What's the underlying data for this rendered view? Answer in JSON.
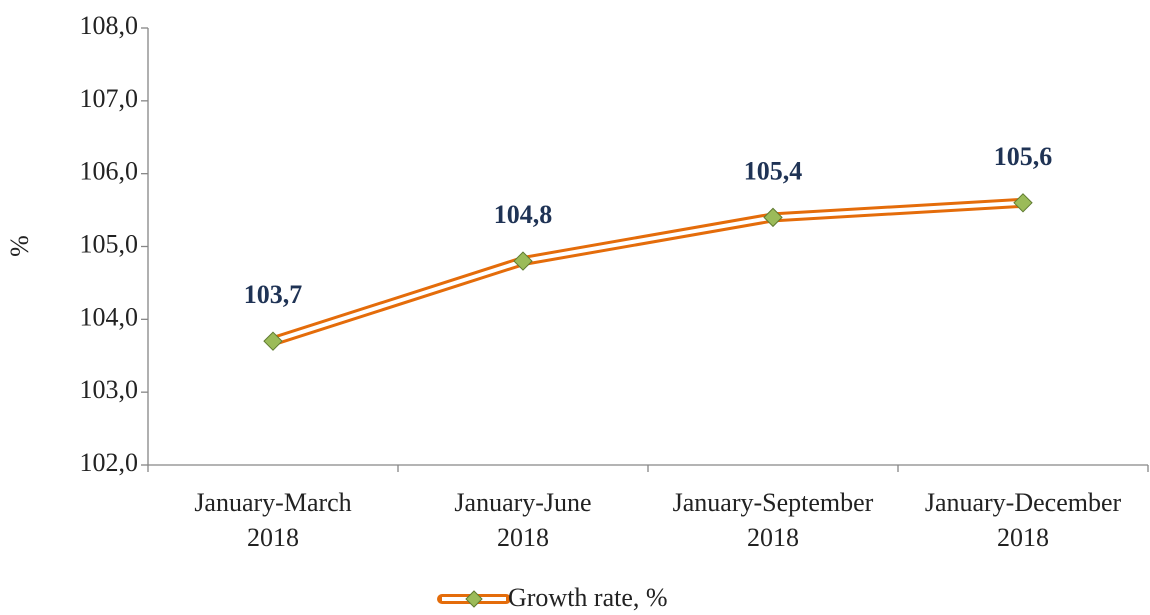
{
  "chart_data": {
    "type": "line",
    "categories": [
      "January-March 2018",
      "January-June 2018",
      "January-September 2018",
      "January-December 2018"
    ],
    "series": [
      {
        "name": "Growth rate, %",
        "color": "#e46c0a",
        "marker_color": "#9bbb59",
        "values": [
          103.7,
          104.8,
          105.4,
          105.6
        ],
        "value_labels": [
          "103,7",
          "104,8",
          "105,4",
          "105,6"
        ]
      }
    ],
    "ylabel": "%",
    "ylim": [
      102,
      108
    ],
    "yticks": [
      {
        "value": 102,
        "label": "102,0"
      },
      {
        "value": 103,
        "label": "103,0"
      },
      {
        "value": 104,
        "label": "104,0"
      },
      {
        "value": 105,
        "label": "105,0"
      },
      {
        "value": 106,
        "label": "106,0"
      },
      {
        "value": 107,
        "label": "107,0"
      },
      {
        "value": 108,
        "label": "108,0"
      }
    ],
    "legend": "bottom"
  }
}
